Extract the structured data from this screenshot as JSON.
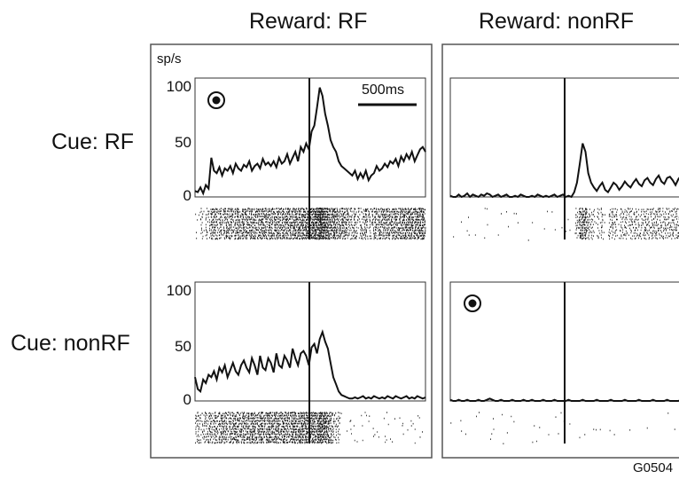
{
  "column_titles": [
    "Reward: RF",
    "Reward: nonRF"
  ],
  "row_labels": [
    "Cue: RF",
    "Cue: nonRF"
  ],
  "y_unit": "sp/s",
  "y_ticks": [
    "100",
    "50",
    "0"
  ],
  "scale_bar_label": "500ms",
  "figure_id": "G0504",
  "colors": {
    "trace": "#111111",
    "frame": "#555555",
    "background": "#ffffff"
  },
  "chart_data": [
    {
      "type": "line",
      "panel": "Cue: RF / Reward: RF",
      "ylim": [
        0,
        100
      ],
      "cue_marker": true,
      "values": [
        5,
        4,
        8,
        3,
        10,
        7,
        33,
        22,
        20,
        25,
        18,
        24,
        22,
        26,
        20,
        28,
        24,
        22,
        27,
        25,
        30,
        22,
        26,
        28,
        24,
        32,
        27,
        29,
        26,
        30,
        25,
        33,
        28,
        30,
        36,
        28,
        33,
        38,
        30,
        42,
        38,
        45,
        40,
        55,
        60,
        75,
        92,
        85,
        70,
        60,
        48,
        42,
        38,
        30,
        26,
        24,
        22,
        20,
        18,
        22,
        15,
        20,
        16,
        22,
        14,
        18,
        20,
        26,
        22,
        24,
        28,
        25,
        30,
        28,
        32,
        26,
        34,
        30,
        36,
        32,
        38,
        30,
        35,
        40,
        42,
        38
      ],
      "raster": true
    },
    {
      "type": "line",
      "panel": "Cue: RF / Reward: nonRF",
      "ylim": [
        0,
        100
      ],
      "cue_marker": false,
      "values": [
        1,
        0,
        0,
        2,
        0,
        1,
        3,
        0,
        2,
        1,
        0,
        2,
        1,
        3,
        2,
        0,
        1,
        2,
        0,
        1,
        2,
        0,
        0,
        1,
        0,
        2,
        1,
        0,
        0,
        1,
        0,
        2,
        1,
        0,
        1,
        0,
        1,
        2,
        0,
        1,
        2,
        0,
        1,
        0,
        4,
        12,
        28,
        45,
        38,
        20,
        12,
        8,
        5,
        9,
        12,
        6,
        4,
        8,
        12,
        10,
        6,
        9,
        13,
        10,
        8,
        12,
        15,
        11,
        9,
        14,
        16,
        12,
        10,
        15,
        18,
        13,
        11,
        16,
        17,
        14,
        10,
        15,
        18,
        13,
        16,
        14
      ],
      "raster": true
    },
    {
      "type": "line",
      "panel": "Cue: nonRF / Reward: RF",
      "ylim": [
        0,
        100
      ],
      "cue_marker": false,
      "values": [
        20,
        10,
        8,
        18,
        15,
        22,
        20,
        25,
        18,
        28,
        24,
        30,
        20,
        26,
        32,
        25,
        22,
        30,
        34,
        28,
        24,
        36,
        30,
        22,
        38,
        28,
        26,
        36,
        32,
        24,
        40,
        30,
        28,
        38,
        34,
        28,
        44,
        36,
        30,
        40,
        42,
        38,
        30,
        45,
        48,
        40,
        52,
        58,
        50,
        44,
        32,
        20,
        14,
        8,
        5,
        4,
        3,
        2,
        2,
        3,
        2,
        3,
        4,
        2,
        3,
        2,
        4,
        3,
        2,
        3,
        2,
        4,
        3,
        2,
        4,
        3,
        2,
        3,
        4,
        2,
        3,
        2,
        4,
        3,
        2,
        3
      ],
      "raster": true
    },
    {
      "type": "line",
      "panel": "Cue: nonRF / Reward: nonRF",
      "ylim": [
        0,
        100
      ],
      "cue_marker": true,
      "values": [
        1,
        0,
        0,
        1,
        0,
        0,
        1,
        0,
        0,
        0,
        1,
        0,
        0,
        1,
        2,
        1,
        0,
        0,
        1,
        0,
        0,
        0,
        1,
        0,
        0,
        0,
        1,
        0,
        0,
        1,
        0,
        0,
        0,
        1,
        0,
        0,
        0,
        1,
        0,
        0,
        0,
        0,
        1,
        0,
        0,
        0,
        0,
        1,
        0,
        0,
        0,
        0,
        1,
        0,
        0,
        0,
        0,
        1,
        0,
        0,
        0,
        0,
        1,
        0,
        0,
        0,
        0,
        1,
        0,
        0,
        0,
        0,
        1,
        0,
        0,
        0,
        0,
        1,
        0,
        0,
        0,
        0,
        1,
        0,
        0,
        0
      ],
      "raster": true
    }
  ]
}
